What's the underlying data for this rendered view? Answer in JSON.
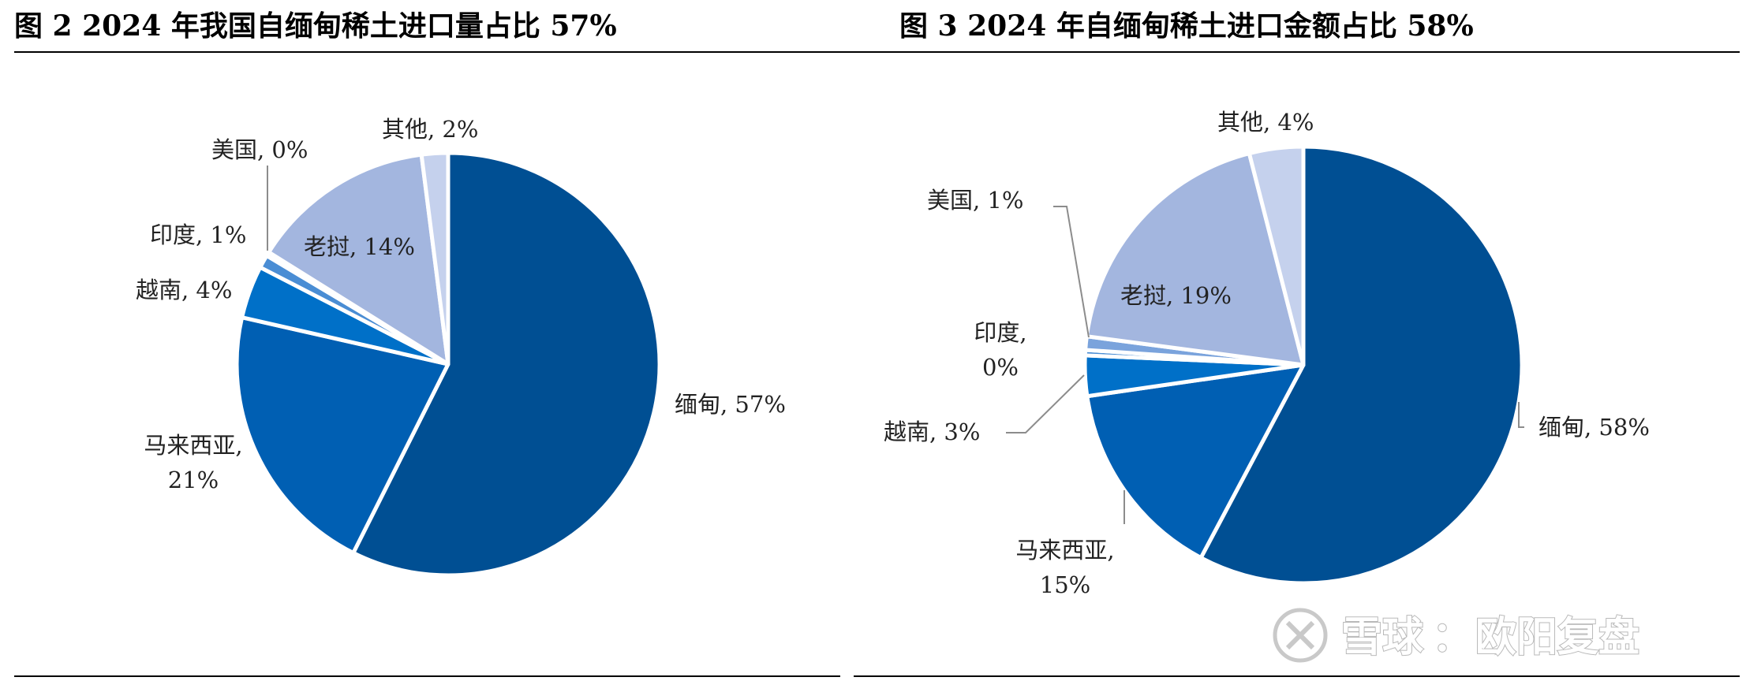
{
  "chart_data": [
    {
      "type": "pie",
      "title": "图 2 2024 年我国自缅甸稀土进口量占比 57%",
      "slices": [
        {
          "name": "缅甸",
          "value": 57,
          "label": "缅甸, 57%",
          "color": "#004f93"
        },
        {
          "name": "马来西亚",
          "value": 21,
          "label": [
            "马来西亚,",
            "21%"
          ],
          "color": "#005fb3"
        },
        {
          "name": "越南",
          "value": 4,
          "label": "越南, 4%",
          "color": "#0070c8"
        },
        {
          "name": "印度",
          "value": 1,
          "label": "印度, 1%",
          "color": "#4a8dd4"
        },
        {
          "name": "美国",
          "value": 0.3,
          "label": "美国, 0%",
          "color": "#7aa3dc"
        },
        {
          "name": "老挝",
          "value": 14,
          "label": "老挝, 14%",
          "color": "#a3b6df"
        },
        {
          "name": "其他",
          "value": 2,
          "label": "其他, 2%",
          "color": "#c5d1ed"
        }
      ]
    },
    {
      "type": "pie",
      "title": "图 3 2024 年自缅甸稀土进口金额占比 58%",
      "slices": [
        {
          "name": "缅甸",
          "value": 58,
          "label": "缅甸, 58%",
          "color": "#004f93"
        },
        {
          "name": "马来西亚",
          "value": 15,
          "label": [
            "马来西亚,",
            "15%"
          ],
          "color": "#005fb3"
        },
        {
          "name": "越南",
          "value": 3,
          "label": "越南, 3%",
          "color": "#0070c8"
        },
        {
          "name": "印度",
          "value": 0.4,
          "label": [
            "印度,",
            "0%"
          ],
          "color": "#4a8dd4"
        },
        {
          "name": "美国",
          "value": 1,
          "label": "美国, 1%",
          "color": "#7aa3dc"
        },
        {
          "name": "老挝",
          "value": 19,
          "label": "老挝, 19%",
          "color": "#a3b6df"
        },
        {
          "name": "其他",
          "value": 4,
          "label": "其他, 4%",
          "color": "#c5d1ed"
        }
      ]
    }
  ],
  "watermark": {
    "site": "雪球",
    "separator": "：",
    "author": "欧阳复盘"
  }
}
